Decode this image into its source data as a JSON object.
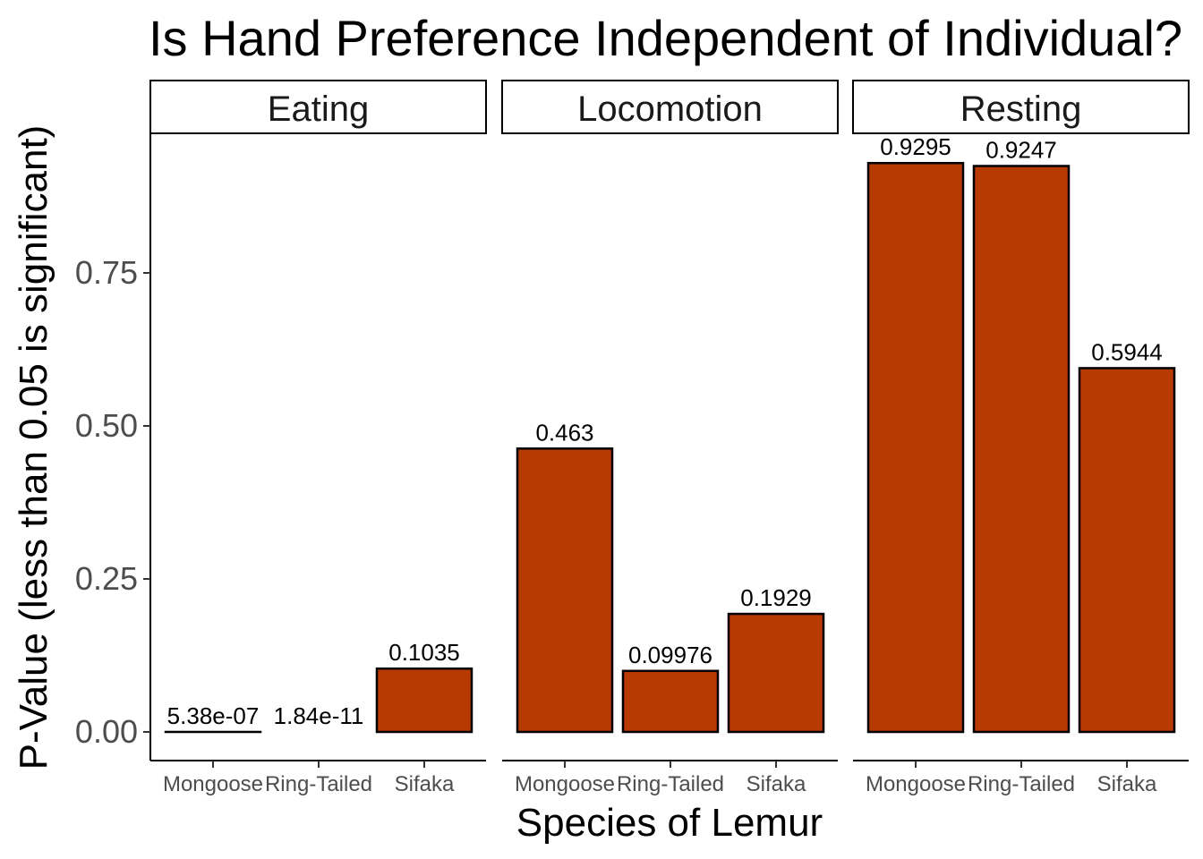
{
  "chart_data": {
    "type": "bar",
    "title": "Is Hand Preference Independent of Individual?",
    "xlabel": "Species of Lemur",
    "ylabel": "P-Value (less than 0.05 is significant)",
    "ylim": [
      0,
      1
    ],
    "yticks": [
      0,
      0.25,
      0.5,
      0.75
    ],
    "ytick_labels": [
      "0.00",
      "0.25",
      "0.50",
      "0.75"
    ],
    "categories": [
      "Mongoose",
      "Ring-Tailed",
      "Sifaka"
    ],
    "bar_color": "#B83A03",
    "panels": [
      {
        "name": "Eating",
        "values": [
          5.38e-07,
          1.84e-11,
          0.1035
        ],
        "labels": [
          "5.38e-07",
          "1.84e-11",
          "0.1035"
        ]
      },
      {
        "name": "Locomotion",
        "values": [
          0.463,
          0.09976,
          0.1929
        ],
        "labels": [
          "0.463",
          "0.09976",
          "0.1929"
        ]
      },
      {
        "name": "Resting",
        "values": [
          0.9295,
          0.9247,
          0.5944
        ],
        "labels": [
          "0.9295",
          "0.9247",
          "0.5944"
        ]
      }
    ],
    "grid": false,
    "legend": "none"
  }
}
